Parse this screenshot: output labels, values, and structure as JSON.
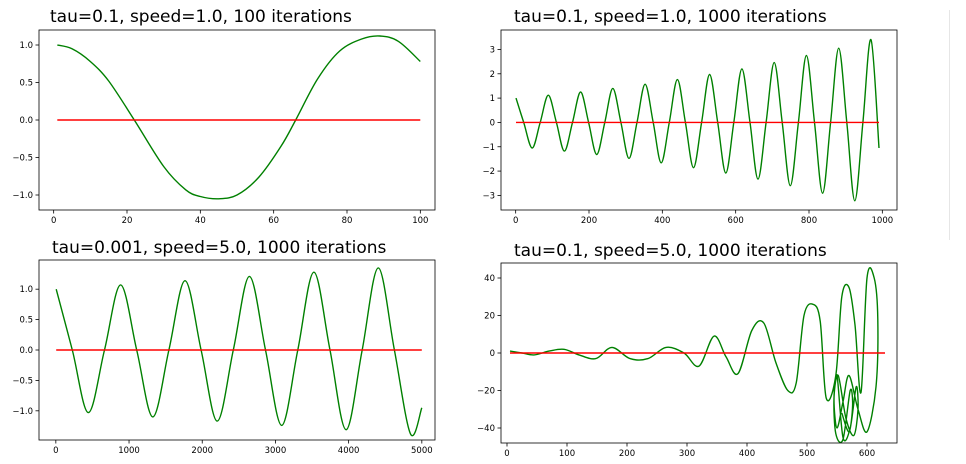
{
  "chart_data": [
    {
      "type": "line",
      "title": "tau=0.1, speed=1.0, 100 iterations",
      "xlim": [
        -4,
        104
      ],
      "ylim": [
        -1.2,
        1.2
      ],
      "xticks": [
        0,
        20,
        40,
        60,
        80,
        100
      ],
      "xtick_labels": [
        "0",
        "20",
        "40",
        "60",
        "80",
        "100"
      ],
      "yticks": [
        -1.0,
        -0.5,
        0.0,
        0.5,
        1.0
      ],
      "ytick_labels": [
        "−1.0",
        "−0.5",
        "0.0",
        "0.5",
        "1.0"
      ],
      "series": [
        {
          "color": "#008000",
          "x": [
            1,
            5,
            10,
            15,
            22,
            30,
            36,
            40,
            45,
            50,
            56,
            62,
            66,
            72,
            78,
            84,
            89,
            94,
            100
          ],
          "y": [
            1.0,
            0.95,
            0.78,
            0.52,
            0.0,
            -0.62,
            -0.93,
            -1.02,
            -1.05,
            -1.0,
            -0.76,
            -0.35,
            0.0,
            0.55,
            0.92,
            1.08,
            1.12,
            1.05,
            0.78
          ]
        },
        {
          "color": "#ff0000",
          "x": [
            1,
            100
          ],
          "y": [
            0,
            0
          ]
        }
      ]
    },
    {
      "type": "line",
      "title": "tau=0.1, speed=1.0, 1000 iterations",
      "xlim": [
        -40,
        1040
      ],
      "ylim": [
        -3.6,
        3.8
      ],
      "xticks": [
        0,
        200,
        400,
        600,
        800,
        1000
      ],
      "xtick_labels": [
        "0",
        "200",
        "400",
        "600",
        "800",
        "1000"
      ],
      "yticks": [
        -3,
        -2,
        -1,
        0,
        1,
        2,
        3
      ],
      "ytick_labels": [
        "−3",
        "−2",
        "−1",
        "0",
        "1",
        "2",
        "3"
      ],
      "series": [
        {
          "color": "#008000",
          "x": [
            1,
            22,
            45,
            67,
            89,
            111,
            133,
            155,
            177,
            199,
            221,
            243,
            265,
            287,
            309,
            331,
            353,
            375,
            397,
            419,
            441,
            463,
            485,
            507,
            529,
            551,
            573,
            595,
            617,
            639,
            661,
            683,
            705,
            727,
            749,
            771,
            793,
            815,
            837,
            859,
            881,
            903,
            925,
            947,
            969,
            991
          ],
          "y": [
            1.0,
            0.0,
            -1.05,
            0.0,
            1.12,
            0.0,
            -1.18,
            0.0,
            1.25,
            0.0,
            -1.32,
            0.0,
            1.4,
            0.0,
            -1.48,
            0.0,
            1.57,
            0.0,
            -1.66,
            0.0,
            1.76,
            0.0,
            -1.86,
            0.0,
            1.97,
            0.0,
            -2.08,
            0.0,
            2.2,
            0.0,
            -2.33,
            0.0,
            2.46,
            0.0,
            -2.6,
            0.0,
            2.75,
            0.0,
            -2.91,
            0.0,
            3.05,
            0.0,
            -3.22,
            0.0,
            3.4,
            -1.05
          ]
        },
        {
          "color": "#ff0000",
          "x": [
            1,
            991
          ],
          "y": [
            0,
            0
          ]
        }
      ]
    },
    {
      "type": "line",
      "title": "tau=0.001, speed=5.0, 1000 iterations",
      "xlim": [
        -230,
        5180
      ],
      "ylim": [
        -1.48,
        1.48
      ],
      "xticks": [
        0,
        1000,
        2000,
        3000,
        4000,
        5000
      ],
      "xtick_labels": [
        "0",
        "1000",
        "2000",
        "3000",
        "4000",
        "5000"
      ],
      "yticks": [
        -1.0,
        -0.5,
        0.0,
        0.5,
        1.0
      ],
      "ytick_labels": [
        "−1.0",
        "−0.5",
        "0.0",
        "0.5",
        "1.0"
      ],
      "series": [
        {
          "color": "#008000",
          "x": [
            5,
            225,
            445,
            665,
            885,
            1105,
            1325,
            1545,
            1765,
            1985,
            2205,
            2425,
            2645,
            2865,
            3085,
            3305,
            3525,
            3745,
            3965,
            4185,
            4405,
            4625,
            4845,
            5000
          ],
          "y": [
            1.0,
            0.0,
            -1.03,
            0.0,
            1.07,
            0.0,
            -1.1,
            0.0,
            1.14,
            0.0,
            -1.17,
            0.0,
            1.21,
            0.0,
            -1.24,
            0.0,
            1.28,
            0.0,
            -1.31,
            0.0,
            1.35,
            0.0,
            -1.38,
            -0.95
          ]
        },
        {
          "color": "#ff0000",
          "x": [
            5,
            5000
          ],
          "y": [
            0,
            0
          ]
        }
      ]
    },
    {
      "type": "line",
      "title": "tau=0.1, speed=5.0, 1000 iterations",
      "xlim": [
        -10,
        650
      ],
      "ylim": [
        -48,
        48
      ],
      "xticks": [
        0,
        100,
        200,
        300,
        400,
        500,
        600
      ],
      "xtick_labels": [
        "0",
        "100",
        "200",
        "300",
        "400",
        "500",
        "600"
      ],
      "yticks": [
        -40,
        -20,
        0,
        20,
        40
      ],
      "ytick_labels": [
        "−40",
        "−20",
        "0",
        "20",
        "40"
      ],
      "series": [
        {
          "color": "#008000",
          "x": [
            5,
            25,
            45,
            70,
            95,
            120,
            148,
            175,
            205,
            235,
            265,
            295,
            320,
            345,
            365,
            385,
            408,
            428,
            448,
            468,
            482,
            495,
            510,
            522,
            532,
            548,
            558,
            570,
            580,
            590,
            600,
            612,
            618,
            615,
            600,
            585,
            570,
            560,
            550,
            545,
            550,
            560,
            572,
            582,
            585,
            578,
            565,
            552,
            545,
            548,
            560,
            572,
            576,
            570,
            558
          ],
          "y": [
            1,
            0,
            -1,
            1,
            2,
            -1,
            -3,
            3,
            -3,
            -3,
            3,
            0,
            -7,
            9,
            -2,
            -11,
            12,
            16,
            -5,
            -20,
            -16,
            20,
            26,
            17,
            -24,
            -12,
            30,
            35,
            15,
            -21,
            40,
            40,
            18,
            -18,
            -42,
            -30,
            -12,
            -26,
            -40,
            -25,
            -12,
            -45,
            -40,
            -18,
            -30,
            -44,
            -35,
            -12,
            -24,
            -43,
            -46,
            -20,
            -28,
            -42,
            -32
          ]
        },
        {
          "color": "#ff0000",
          "x": [
            5,
            630
          ],
          "y": [
            0,
            0
          ]
        }
      ]
    }
  ]
}
